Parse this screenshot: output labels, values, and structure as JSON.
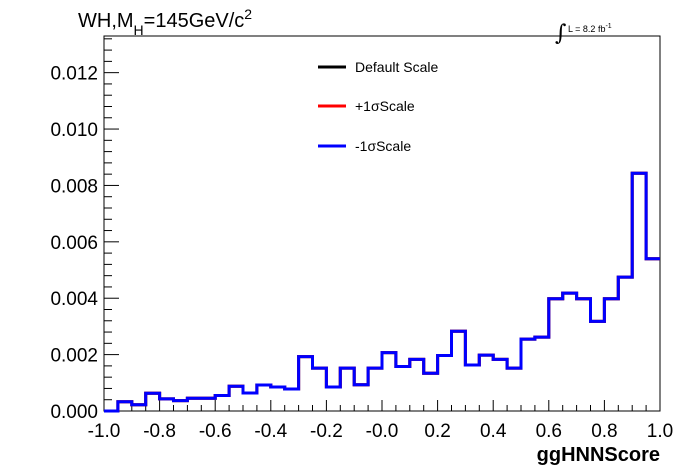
{
  "chart_data": {
    "type": "line",
    "title": {
      "main": "WH,M",
      "subscript": "H",
      "rest": "=145GeV/c",
      "superscript": "2"
    },
    "luminosity": {
      "integral_symbol": "∫",
      "label": "L = 8.2 fb",
      "superscript": "-1"
    },
    "xlabel": "ggHNNScore",
    "ylabel": "",
    "xlim": [
      -1.0,
      1.0
    ],
    "ylim": [
      0.0,
      0.0133
    ],
    "x_ticks": [
      "-1.0",
      "-0.8",
      "-0.6",
      "-0.4",
      "-0.2",
      "-0.0",
      "0.2",
      "0.4",
      "0.6",
      "0.8",
      "1.0"
    ],
    "y_ticks": [
      "0.000",
      "0.002",
      "0.004",
      "0.006",
      "0.008",
      "0.010",
      "0.012"
    ],
    "legend_position": "top-center",
    "bin_edges": [
      -1.0,
      -0.95,
      -0.9,
      -0.85,
      -0.8,
      -0.75,
      -0.7,
      -0.65,
      -0.6,
      -0.55,
      -0.5,
      -0.45,
      -0.4,
      -0.35,
      -0.3,
      -0.25,
      -0.2,
      -0.15,
      -0.1,
      -0.05,
      0.0,
      0.05,
      0.1,
      0.15,
      0.2,
      0.25,
      0.3,
      0.35,
      0.4,
      0.45,
      0.5,
      0.55,
      0.6,
      0.65,
      0.7,
      0.75,
      0.8,
      0.85,
      0.9,
      0.95,
      1.0
    ],
    "series": [
      {
        "name": "Default Scale",
        "color": "#000000",
        "values": [
          0.0,
          0.00033,
          0.00022,
          0.00063,
          0.00043,
          0.00037,
          0.00045,
          0.00045,
          0.00055,
          0.00088,
          0.00064,
          0.00092,
          0.00085,
          0.00078,
          0.00193,
          0.00152,
          0.00085,
          0.00152,
          0.00093,
          0.00152,
          0.00207,
          0.00158,
          0.00183,
          0.00134,
          0.00197,
          0.00283,
          0.00163,
          0.00198,
          0.00183,
          0.00152,
          0.00255,
          0.00262,
          0.00398,
          0.00418,
          0.00398,
          0.00318,
          0.00398,
          0.00475,
          0.00843,
          0.0054
        ]
      },
      {
        "name": "+1σScale",
        "color": "#ff0000",
        "values": [
          0.0,
          0.00033,
          0.00022,
          0.00063,
          0.00043,
          0.00037,
          0.00045,
          0.00045,
          0.00055,
          0.00088,
          0.00064,
          0.00092,
          0.00085,
          0.00078,
          0.00193,
          0.00152,
          0.00085,
          0.00152,
          0.00093,
          0.00152,
          0.00207,
          0.00158,
          0.00183,
          0.00134,
          0.00197,
          0.00283,
          0.00163,
          0.00198,
          0.00183,
          0.00152,
          0.00255,
          0.00262,
          0.00398,
          0.00418,
          0.00398,
          0.00318,
          0.00398,
          0.00475,
          0.00843,
          0.0054
        ]
      },
      {
        "name": "-1σScale",
        "color": "#0000ff",
        "values": [
          0.0,
          0.00033,
          0.00022,
          0.00063,
          0.00043,
          0.00037,
          0.00045,
          0.00045,
          0.00055,
          0.00088,
          0.00064,
          0.00092,
          0.00085,
          0.00078,
          0.00193,
          0.00152,
          0.00085,
          0.00152,
          0.00093,
          0.00152,
          0.00207,
          0.00158,
          0.00183,
          0.00134,
          0.00197,
          0.00283,
          0.00163,
          0.00198,
          0.00183,
          0.00152,
          0.00255,
          0.00262,
          0.00398,
          0.00418,
          0.00398,
          0.00318,
          0.00398,
          0.00475,
          0.00843,
          0.0054
        ]
      }
    ]
  }
}
